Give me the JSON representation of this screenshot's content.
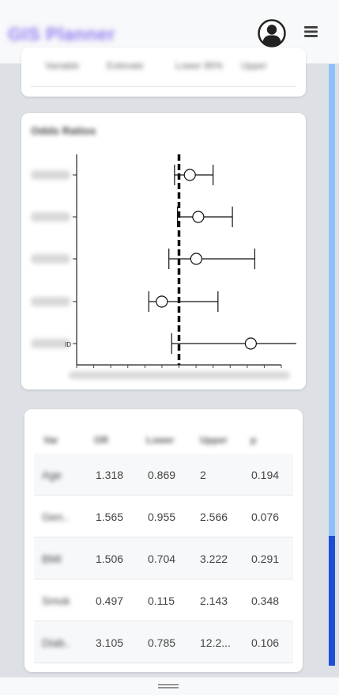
{
  "header": {
    "brand": "GIS Planner",
    "avatar_icon": "user-circle-icon",
    "menu_icon": "hamburger-menu-icon"
  },
  "top_card": {
    "cells": [
      "Variable",
      "Estimate",
      "Lower 95%",
      "Upper"
    ]
  },
  "forest_plot": {
    "title": "Odds Ratios",
    "chart_data": {
      "type": "forest",
      "reference_line": 1,
      "rows": [
        {
          "label": "Age",
          "estimate": 1.318,
          "lower": 0.869,
          "upper": 2.0
        },
        {
          "label": "Gender",
          "estimate": 1.565,
          "lower": 0.955,
          "upper": 2.566
        },
        {
          "label": "BMI",
          "estimate": 1.506,
          "lower": 0.704,
          "upper": 3.222
        },
        {
          "label": "Smoker",
          "estimate": 0.497,
          "lower": 0.115,
          "upper": 2.143
        },
        {
          "label": "Diabetes HbA1c_CKD",
          "estimate": 3.105,
          "lower": 0.785,
          "upper": 12.2
        }
      ],
      "row_labels_visible": [
        "",
        "",
        "",
        "",
        "ID"
      ],
      "x_range": [
        -2,
        4
      ],
      "grid": false
    }
  },
  "table": {
    "columns": [
      "Var",
      "OR",
      "Lower",
      "Upper",
      "p"
    ],
    "rows": [
      {
        "name": "Age",
        "or": "1.318",
        "lower": "0.869",
        "upper": "2",
        "p": "0.194"
      },
      {
        "name": "Gen..",
        "or": "1.565",
        "lower": "0.955",
        "upper": "2.566",
        "p": "0.076"
      },
      {
        "name": "BMI",
        "or": "1.506",
        "lower": "0.704",
        "upper": "3.222",
        "p": "0.291"
      },
      {
        "name": "Smok",
        "or": "0.497",
        "lower": "0.115",
        "upper": "2.143",
        "p": "0.348"
      },
      {
        "name": "Diab..",
        "or": "3.105",
        "lower": "0.785",
        "upper": "12.2...",
        "p": "0.106"
      }
    ]
  },
  "colors": {
    "scroll_track": "#8ec1fb",
    "scroll_thumb": "#1b4fd8",
    "brand": "#8f7bf0"
  }
}
